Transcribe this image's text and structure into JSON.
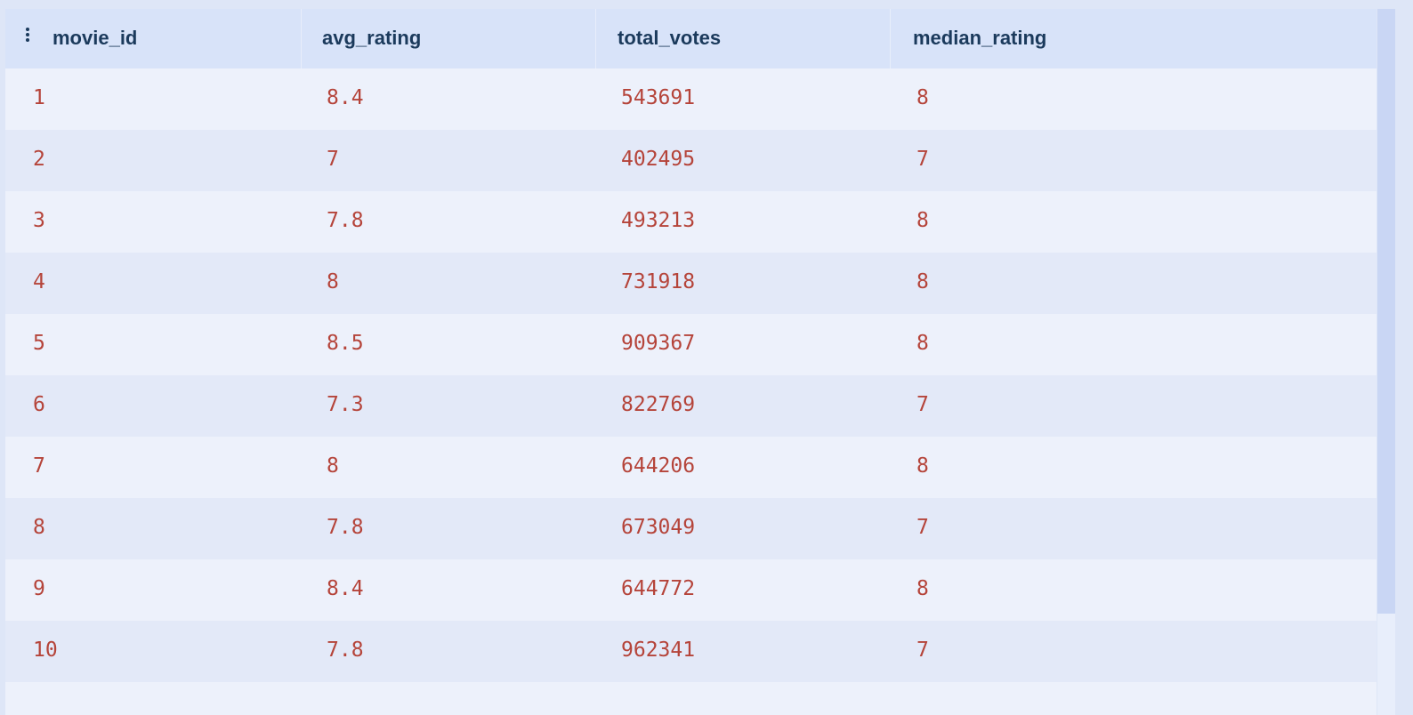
{
  "table": {
    "columns": [
      "movie_id",
      "avg_rating",
      "total_votes",
      "median_rating"
    ],
    "rows": [
      [
        "1",
        "8.4",
        "543691",
        "8"
      ],
      [
        "2",
        "7",
        "402495",
        "7"
      ],
      [
        "3",
        "7.8",
        "493213",
        "8"
      ],
      [
        "4",
        "8",
        "731918",
        "8"
      ],
      [
        "5",
        "8.5",
        "909367",
        "8"
      ],
      [
        "6",
        "7.3",
        "822769",
        "7"
      ],
      [
        "7",
        "8",
        "644206",
        "8"
      ],
      [
        "8",
        "7.8",
        "673049",
        "7"
      ],
      [
        "9",
        "8.4",
        "644772",
        "8"
      ],
      [
        "10",
        "7.8",
        "962341",
        "7"
      ]
    ]
  }
}
